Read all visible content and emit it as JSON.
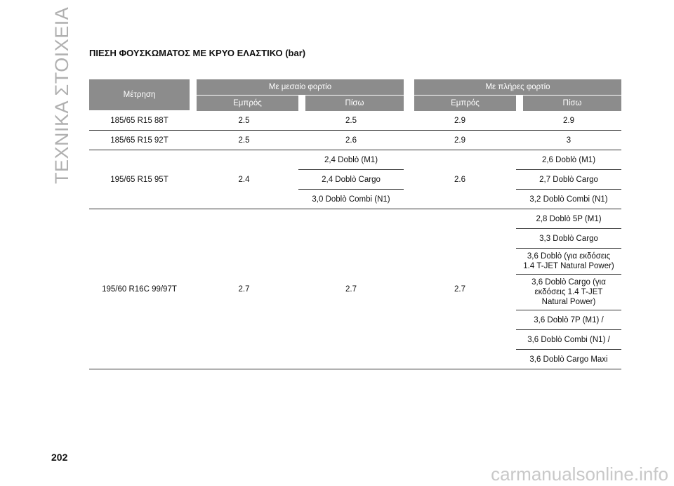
{
  "sidebar": "ΤΕΧΝΙΚΑ ΣΤΟΙΧΕΙΑ",
  "title": "ΠΙΕΣΗ ΦΟΥΣΚΩΜΑΤΟΣ ΜΕ ΚΡΥΟ ΕΛΑΣΤΙΚΟ (bar)",
  "table": {
    "header": {
      "measure": "Μέτρηση",
      "groups": [
        "Με μεσαίο φορτίο",
        "Με πλήρες φορτίο"
      ],
      "sub": [
        "Εμπρός",
        "Πίσω",
        "Εμπρός",
        "Πίσω"
      ]
    },
    "rows": [
      [
        "185/65 R15 88T",
        "2.5",
        "2.5",
        "2.9",
        "2.9"
      ],
      [
        "185/65 R15 92T",
        "2.5",
        "2.6",
        "2.9",
        "3"
      ],
      [
        "195/65 R15 95T",
        "2.4",
        [
          "2,4 Doblò (M1)",
          "2,4 Doblò Cargo",
          "3,0 Doblò Combi (N1)"
        ],
        "2.6",
        [
          "2,6 Doblò (M1)",
          "2,7 Doblò Cargo",
          "3,2 Doblò Combi (N1)"
        ]
      ],
      [
        "195/60 R16C 99/97T",
        "2.7",
        "2.7",
        "2.7",
        [
          "2,8 Doblò 5P (M1)",
          "3,3 Doblò Cargo",
          "3,6 Doblò (για εκδόσεις 1.4 T-JET Natural Power)",
          "3,6 Doblò Cargo (για εκδόσεις 1.4 T-JET Natural Power)",
          "3,6 Doblò 7P (M1) /",
          "3,6 Doblò Combi (N1) /",
          "3,6 Doblò Cargo Maxi"
        ]
      ]
    ]
  },
  "page_number": "202",
  "watermark": "carmanualsonline.info"
}
